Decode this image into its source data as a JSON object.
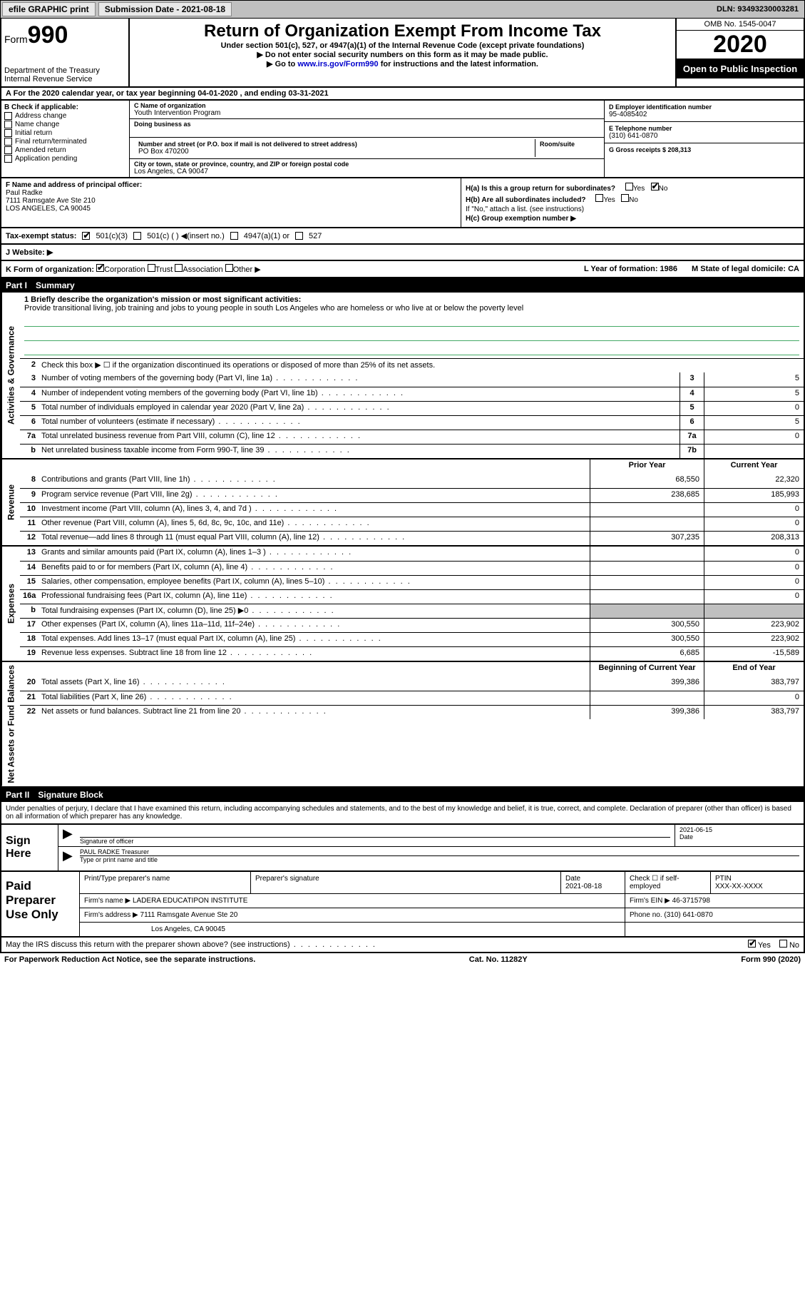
{
  "topbar": {
    "efile_label": "efile GRAPHIC print",
    "submission_label": "Submission Date - 2021-08-18",
    "dln_label": "DLN: 93493230003281"
  },
  "header": {
    "form_prefix": "Form",
    "form_number": "990",
    "dept": "Department of the Treasury",
    "irs": "Internal Revenue Service",
    "title": "Return of Organization Exempt From Income Tax",
    "subtitle": "Under section 501(c), 527, or 4947(a)(1) of the Internal Revenue Code (except private foundations)",
    "note1": "Do not enter social security numbers on this form as it may be made public.",
    "note2_pre": "Go to ",
    "note2_link": "www.irs.gov/Form990",
    "note2_post": " for instructions and the latest information.",
    "omb": "OMB No. 1545-0047",
    "year": "2020",
    "open_public": "Open to Public Inspection"
  },
  "period": {
    "text": "A For the 2020 calendar year, or tax year beginning 04-01-2020    , and ending 03-31-2021"
  },
  "section_b": {
    "label": "B Check if applicable:",
    "items": [
      "Address change",
      "Name change",
      "Initial return",
      "Final return/terminated",
      "Amended return",
      "Application pending"
    ]
  },
  "section_c": {
    "name_lbl": "C Name of organization",
    "name_val": "Youth Intervention Program",
    "dba_lbl": "Doing business as",
    "addr_lbl": "Number and street (or P.O. box if mail is not delivered to street address)",
    "room_lbl": "Room/suite",
    "addr_val": "PO Box 470200",
    "city_lbl": "City or town, state or province, country, and ZIP or foreign postal code",
    "city_val": "Los Angeles, CA  90047"
  },
  "section_d": {
    "lbl": "D Employer identification number",
    "val": "95-4085402"
  },
  "section_e": {
    "lbl": "E Telephone number",
    "val": "(310) 641-0870"
  },
  "section_g": {
    "lbl": "G Gross receipts $ 208,313"
  },
  "section_f": {
    "lbl": "F  Name and address of principal officer:",
    "name": "Paul Radke",
    "addr1": "7111 Ramsgate Ave Ste 210",
    "addr2": "LOS ANGELES, CA  90045"
  },
  "section_h": {
    "ha": "H(a)  Is this a group return for subordinates?",
    "hb": "H(b)  Are all subordinates included?",
    "hb_note": "If \"No,\" attach a list. (see instructions)",
    "hc": "H(c)  Group exemption number ▶",
    "yes": "Yes",
    "no": "No"
  },
  "tax_status": {
    "lbl": "Tax-exempt status:",
    "o1": "501(c)(3)",
    "o2": "501(c) (  ) ◀(insert no.)",
    "o3": "4947(a)(1) or",
    "o4": "527"
  },
  "website": {
    "lbl": "J   Website: ▶"
  },
  "korg": {
    "lbl": "K Form of organization:",
    "o1": "Corporation",
    "o2": "Trust",
    "o3": "Association",
    "o4": "Other ▶",
    "l_lbl": "L Year of formation: 1986",
    "m_lbl": "M State of legal domicile: CA"
  },
  "part1": {
    "header": "Part I",
    "title": "Summary",
    "q1_lbl": "1  Briefly describe the organization's mission or most significant activities:",
    "q1_val": "Provide transitional living, job training and jobs to young people in south Los Angeles who are homeless or who live at or below the poverty level",
    "q2": "Check this box ▶ ☐ if the organization discontinued its operations or disposed of more than 25% of its net assets.",
    "rows_gov": [
      {
        "n": "3",
        "d": "Number of voting members of the governing body (Part VI, line 1a)",
        "box": "3",
        "v": "5"
      },
      {
        "n": "4",
        "d": "Number of independent voting members of the governing body (Part VI, line 1b)",
        "box": "4",
        "v": "5"
      },
      {
        "n": "5",
        "d": "Total number of individuals employed in calendar year 2020 (Part V, line 2a)",
        "box": "5",
        "v": "0"
      },
      {
        "n": "6",
        "d": "Total number of volunteers (estimate if necessary)",
        "box": "6",
        "v": "5"
      },
      {
        "n": "7a",
        "d": "Total unrelated business revenue from Part VIII, column (C), line 12",
        "box": "7a",
        "v": "0"
      },
      {
        "n": "b",
        "d": "Net unrelated business taxable income from Form 990-T, line 39",
        "box": "7b",
        "v": ""
      }
    ],
    "prior_lbl": "Prior Year",
    "current_lbl": "Current Year",
    "rows_rev": [
      {
        "n": "8",
        "d": "Contributions and grants (Part VIII, line 1h)",
        "p": "68,550",
        "c": "22,320"
      },
      {
        "n": "9",
        "d": "Program service revenue (Part VIII, line 2g)",
        "p": "238,685",
        "c": "185,993"
      },
      {
        "n": "10",
        "d": "Investment income (Part VIII, column (A), lines 3, 4, and 7d )",
        "p": "",
        "c": "0"
      },
      {
        "n": "11",
        "d": "Other revenue (Part VIII, column (A), lines 5, 6d, 8c, 9c, 10c, and 11e)",
        "p": "",
        "c": "0"
      },
      {
        "n": "12",
        "d": "Total revenue—add lines 8 through 11 (must equal Part VIII, column (A), line 12)",
        "p": "307,235",
        "c": "208,313"
      }
    ],
    "rows_exp": [
      {
        "n": "13",
        "d": "Grants and similar amounts paid (Part IX, column (A), lines 1–3 )",
        "p": "",
        "c": "0"
      },
      {
        "n": "14",
        "d": "Benefits paid to or for members (Part IX, column (A), line 4)",
        "p": "",
        "c": "0"
      },
      {
        "n": "15",
        "d": "Salaries, other compensation, employee benefits (Part IX, column (A), lines 5–10)",
        "p": "",
        "c": "0"
      },
      {
        "n": "16a",
        "d": "Professional fundraising fees (Part IX, column (A), line 11e)",
        "p": "",
        "c": "0"
      },
      {
        "n": "b",
        "d": "Total fundraising expenses (Part IX, column (D), line 25) ▶0",
        "p": "shaded",
        "c": "shaded"
      },
      {
        "n": "17",
        "d": "Other expenses (Part IX, column (A), lines 11a–11d, 11f–24e)",
        "p": "300,550",
        "c": "223,902"
      },
      {
        "n": "18",
        "d": "Total expenses. Add lines 13–17 (must equal Part IX, column (A), line 25)",
        "p": "300,550",
        "c": "223,902"
      },
      {
        "n": "19",
        "d": "Revenue less expenses. Subtract line 18 from line 12",
        "p": "6,685",
        "c": "-15,589"
      }
    ],
    "boy_lbl": "Beginning of Current Year",
    "eoy_lbl": "End of Year",
    "rows_net": [
      {
        "n": "20",
        "d": "Total assets (Part X, line 16)",
        "p": "399,386",
        "c": "383,797"
      },
      {
        "n": "21",
        "d": "Total liabilities (Part X, line 26)",
        "p": "",
        "c": "0"
      },
      {
        "n": "22",
        "d": "Net assets or fund balances. Subtract line 21 from line 20",
        "p": "399,386",
        "c": "383,797"
      }
    ]
  },
  "part2": {
    "header": "Part II",
    "title": "Signature Block",
    "intro": "Under penalties of perjury, I declare that I have examined this return, including accompanying schedules and statements, and to the best of my knowledge and belief, it is true, correct, and complete. Declaration of preparer (other than officer) is based on all information of which preparer has any knowledge.",
    "sign_here": "Sign Here",
    "sig_officer_lbl": "Signature of officer",
    "date_lbl": "Date",
    "date_val": "2021-06-15",
    "name_title": "PAUL RADKE  Treasurer",
    "type_lbl": "Type or print name and title"
  },
  "paid_prep": {
    "lbl": "Paid Preparer Use Only",
    "r1": {
      "c1": "Print/Type preparer's name",
      "c2": "Preparer's signature",
      "c3": "Date",
      "c3v": "2021-08-18",
      "c4": "Check ☐ if self-employed",
      "c5": "PTIN",
      "c5v": "XXX-XX-XXXX"
    },
    "r2": {
      "c1": "Firm's name    ▶ LADERA EDUCATIPON INSTITUTE",
      "c2": "Firm's EIN ▶ 46-3715798"
    },
    "r3": {
      "c1": "Firm's address ▶ 7111 Ramsgate Avenue Ste 20",
      "c2": "Phone no. (310) 641-0870"
    },
    "r4": {
      "c1": "Los Angeles, CA  90045"
    }
  },
  "irs_discuss": {
    "q": "May the IRS discuss this return with the preparer shown above? (see instructions)",
    "yes": "Yes",
    "no": "No"
  },
  "footer": {
    "left": "For Paperwork Reduction Act Notice, see the separate instructions.",
    "center": "Cat. No. 11282Y",
    "right": "Form 990 (2020)"
  },
  "side_labels": {
    "gov": "Activities & Governance",
    "rev": "Revenue",
    "exp": "Expenses",
    "net": "Net Assets or Fund Balances"
  }
}
